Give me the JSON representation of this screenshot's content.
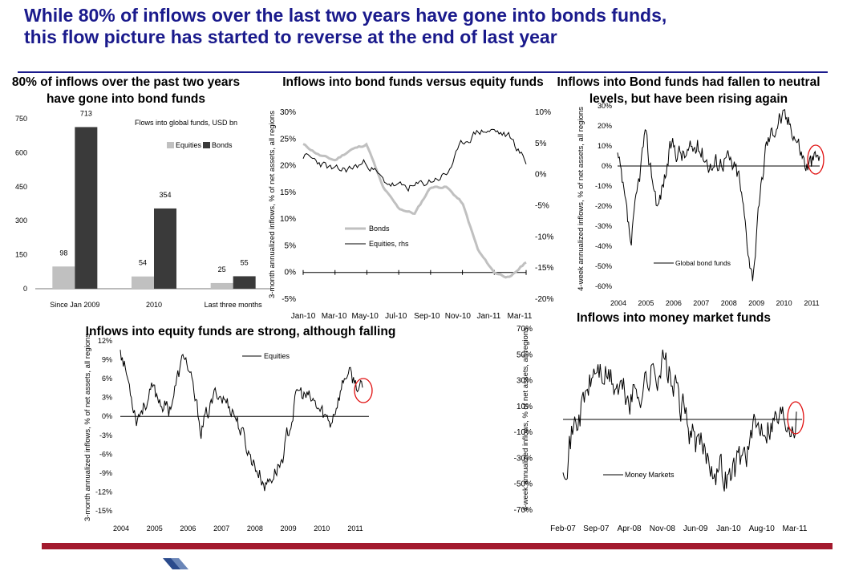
{
  "header": {
    "line1": "While 80% of inflows over the last two years have gone into bonds funds,",
    "line2": "this flow picture has started to reverse at the end of last year"
  },
  "colors": {
    "header_blue": "#1a1a8c",
    "footer_red": "#a31a2e",
    "equities_gray": "#c0c0c0",
    "bonds_dark": "#3a3a3a",
    "highlight_circle": "#e01010"
  },
  "chart_data": [
    {
      "type": "bar",
      "title": "80% of inflows over the past two years have gone into bond funds",
      "subtitle": "Flows into global funds, USD bn",
      "categories": [
        "Since Jan 2009",
        "2010",
        "Last three months"
      ],
      "series": [
        {
          "name": "Equities",
          "values": [
            98,
            54,
            25
          ]
        },
        {
          "name": "Bonds",
          "values": [
            713,
            354,
            55
          ]
        }
      ],
      "ylim": [
        0,
        750
      ],
      "yticks": [
        "0",
        "150",
        "300",
        "450",
        "600",
        "750"
      ],
      "legend": "top-right"
    },
    {
      "type": "line",
      "title": "Inflows into bond funds versus equity funds",
      "ylabel": "3-month annualized inflows, % of net assets, all regions",
      "x": [
        "Jan-10",
        "Feb-10",
        "Mar-10",
        "Apr-10",
        "May-10",
        "Jun-10",
        "Jul-10",
        "Aug-10",
        "Sep-10",
        "Oct-10",
        "Nov-10",
        "Dec-10",
        "Jan-11",
        "Feb-11",
        "Mar-11"
      ],
      "xticks": [
        "Jan-10",
        "Mar-10",
        "May-10",
        "Jul-10",
        "Sep-10",
        "Nov-10",
        "Jan-11",
        "Mar-11"
      ],
      "yticks_left": [
        "-5%",
        "0%",
        "5%",
        "10%",
        "15%",
        "20%",
        "25%",
        "30%"
      ],
      "yticks_right": [
        "-20%",
        "-15%",
        "-10%",
        "-5%",
        "0%",
        "5%",
        "10%"
      ],
      "ylim_left": [
        -5,
        30
      ],
      "ylim_right": [
        -20,
        10
      ],
      "series": [
        {
          "name": "Bonds",
          "axis": "left",
          "values": [
            24,
            22,
            21,
            23,
            24,
            16,
            12,
            11,
            16,
            16,
            13,
            4,
            0,
            -1,
            2
          ]
        },
        {
          "name": "Equities, rhs",
          "axis": "right",
          "values": [
            3,
            2,
            0.5,
            1,
            2,
            -1,
            -2,
            -2,
            -1,
            0,
            5,
            7,
            7,
            6,
            2
          ]
        }
      ],
      "legend": "center-left"
    },
    {
      "type": "line",
      "title": "Inflows into Bond funds had fallen to neutral levels, but have been rising again",
      "ylabel": "4-week annualized inflows, % of net assets, all regions",
      "x": [
        2004,
        2004.5,
        2005,
        2005.5,
        2006,
        2006.5,
        2007,
        2007.5,
        2008,
        2008.5,
        2009,
        2009.5,
        2010,
        2010.5,
        2011,
        2011.2
      ],
      "xticks": [
        "2004",
        "2005",
        "2006",
        "2007",
        "2008",
        "2009",
        "2010",
        "2011"
      ],
      "yticks": [
        "-60%",
        "-50%",
        "-40%",
        "-30%",
        "-20%",
        "-10%",
        "0%",
        "10%",
        "20%",
        "30%"
      ],
      "ylim": [
        -60,
        30
      ],
      "series": [
        {
          "name": "Global bond funds",
          "values": [
            5,
            -40,
            15,
            -20,
            10,
            5,
            10,
            0,
            5,
            -5,
            -55,
            10,
            25,
            20,
            0,
            5
          ]
        }
      ],
      "legend": "center-right"
    },
    {
      "type": "line",
      "title": "Inflows into equity funds are strong, although falling",
      "ylabel": "3-month annualized inflows, % of net assets, all regions",
      "x": [
        2004,
        2004.5,
        2005,
        2005.5,
        2006,
        2006.5,
        2007,
        2007.5,
        2008,
        2008.5,
        2009,
        2009.5,
        2010,
        2010.5,
        2011,
        2011.2
      ],
      "xticks": [
        "2004",
        "2005",
        "2006",
        "2007",
        "2008",
        "2009",
        "2010",
        "2011"
      ],
      "yticks": [
        "-15%",
        "-12%",
        "-9%",
        "-6%",
        "-3%",
        "0%",
        "3%",
        "6%",
        "9%",
        "12%"
      ],
      "ylim": [
        -15,
        12
      ],
      "series": [
        {
          "name": "Equities",
          "values": [
            11,
            0,
            4,
            1,
            10,
            -2,
            4,
            1,
            -6,
            -11,
            -7,
            4,
            2,
            -1,
            7,
            4
          ]
        }
      ],
      "legend": "top-center"
    },
    {
      "type": "line",
      "title": "Inflows into money market funds",
      "ylabel": "4-week annualized inflows, % of net assets, all regions",
      "x": [
        "Feb-07",
        "Sep-07",
        "Apr-08",
        "Nov-08",
        "Jun-09",
        "Jan-10",
        "Aug-10",
        "Mar-11"
      ],
      "xticks": [
        "Feb-07",
        "Sep-07",
        "Apr-08",
        "Nov-08",
        "Jun-09",
        "Jan-10",
        "Aug-10",
        "Mar-11"
      ],
      "yticks": [
        "-70%",
        "-50%",
        "-30%",
        "-10%",
        "10%",
        "30%",
        "50%",
        "70%"
      ],
      "ylim": [
        -70,
        70
      ],
      "series": [
        {
          "name": "Money Markets",
          "values": [
            -30,
            40,
            15,
            45,
            -20,
            -45,
            0,
            5
          ]
        }
      ],
      "legend": "bottom-center"
    }
  ]
}
